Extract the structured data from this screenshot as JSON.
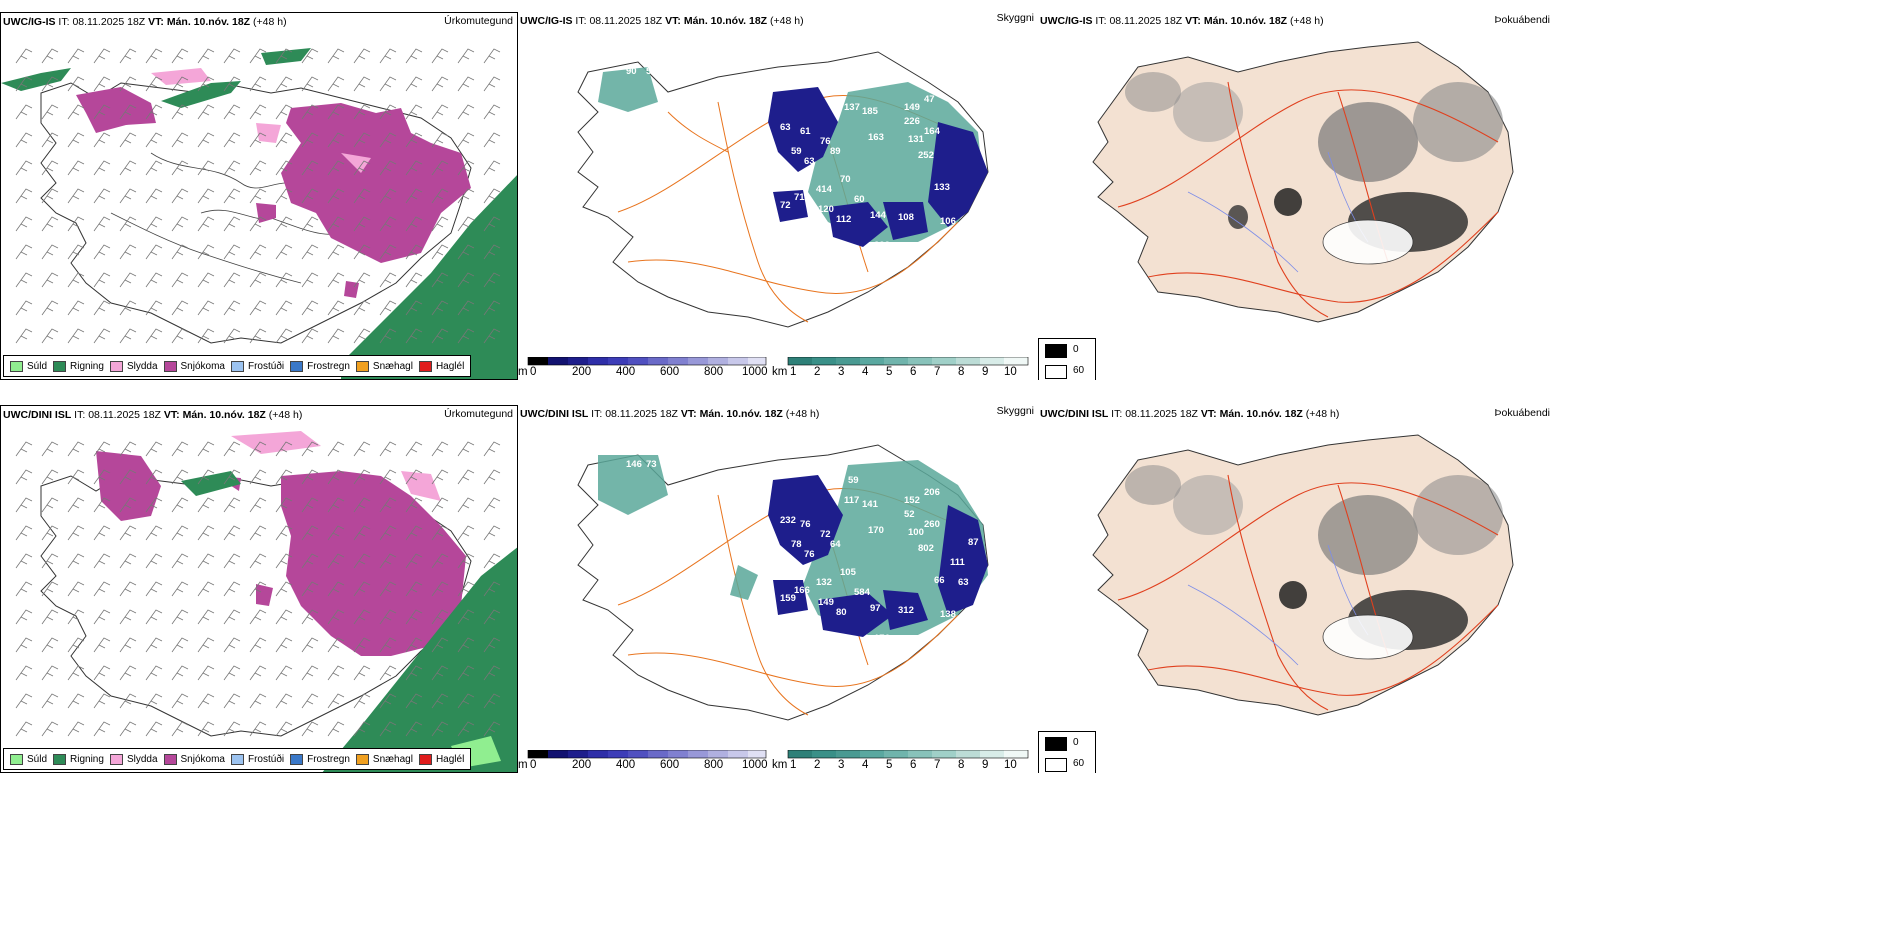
{
  "rows": [
    {
      "precip": {
        "model": "UWC/IG-IS",
        "it_label": "IT:",
        "it_value": "08.11.2025 18Z",
        "vt_label": "VT:",
        "vt_value": "Mán. 10.nóv. 18Z",
        "lead": "(+48 h)",
        "title": "Úrkomutegund"
      },
      "vis": {
        "model": "UWC/IG-IS",
        "it_label": "IT:",
        "it_value": "08.11.2025 18Z",
        "vt_label": "VT:",
        "vt_value": "Mán. 10.nóv. 18Z",
        "lead": "(+48 h)",
        "title": "Skyggni",
        "values": [
          "90",
          "58",
          "63",
          "61",
          "76",
          "89",
          "59",
          "63",
          "79",
          "137",
          "185",
          "149",
          "47",
          "226",
          "163",
          "131",
          "164",
          "252",
          "70",
          "60",
          "133",
          "414",
          "72",
          "71",
          "120",
          "112",
          "144",
          "108",
          "222",
          "106"
        ]
      },
      "cloud": {
        "model": "UWC/IG-IS",
        "it_label": "IT:",
        "it_value": "08.11.2025 18Z",
        "vt_label": "VT:",
        "vt_value": "Mán. 10.nóv. 18Z",
        "lead": "(+48 h)",
        "title": "Þokuábendi"
      }
    },
    {
      "precip": {
        "model": "UWC/DINI ISL",
        "it_label": "IT:",
        "it_value": "08.11.2025 18Z",
        "vt_label": "VT:",
        "vt_value": "Mán. 10.nóv. 18Z",
        "lead": "(+48 h)",
        "title": "Úrkomutegund"
      },
      "vis": {
        "model": "UWC/DINI ISL",
        "it_label": "IT:",
        "it_value": "08.11.2025 18Z",
        "vt_label": "VT:",
        "vt_value": "Mán. 10.nóv. 18Z",
        "lead": "(+48 h)",
        "title": "Skyggni",
        "values": [
          "146",
          "73",
          "232",
          "76",
          "72",
          "64",
          "78",
          "76",
          "59",
          "117",
          "141",
          "152",
          "206",
          "52",
          "170",
          "100",
          "260",
          "802",
          "105",
          "584",
          "66",
          "132",
          "159",
          "166",
          "149",
          "80",
          "97",
          "312",
          "176",
          "138",
          "111",
          "63",
          "87"
        ]
      },
      "cloud": {
        "model": "UWC/DINI ISL",
        "it_label": "IT:",
        "it_value": "08.11.2025 18Z",
        "vt_label": "VT:",
        "vt_value": "Mán. 10.nóv. 18Z",
        "lead": "(+48 h)",
        "title": "Þokuábendi"
      }
    }
  ],
  "precip_legend": [
    {
      "label": "Súld",
      "color": "#90ee90"
    },
    {
      "label": "Rigning",
      "color": "#2e8b57"
    },
    {
      "label": "Slydda",
      "color": "#f4a6d8"
    },
    {
      "label": "Snjókoma",
      "color": "#b5479a"
    },
    {
      "label": "Frostúði",
      "color": "#9cc3f0"
    },
    {
      "label": "Frostregn",
      "color": "#3a78c8"
    },
    {
      "label": "Snæhagl",
      "color": "#f0a020"
    },
    {
      "label": "Haglél",
      "color": "#e01c1c"
    }
  ],
  "height_bar": {
    "unit": "m",
    "ticks": [
      "0",
      "200",
      "400",
      "600",
      "800",
      "1000"
    ]
  },
  "km_bar": {
    "unit": "km",
    "ticks": [
      "1",
      "2",
      "3",
      "4",
      "5",
      "6",
      "7",
      "8",
      "9",
      "10"
    ]
  },
  "cloud_legend": {
    "black": "0",
    "white": "60"
  },
  "colors": {
    "rain": "#2e8b57",
    "snow": "#b5479a",
    "sleet": "#f4a6d8",
    "vis_dark": "#1e1e8c",
    "vis_teal": "#3a9a8a",
    "road": "#e8741e",
    "land": "#f3e1d2",
    "redroad": "#e0401e",
    "river": "#7d8de8"
  }
}
